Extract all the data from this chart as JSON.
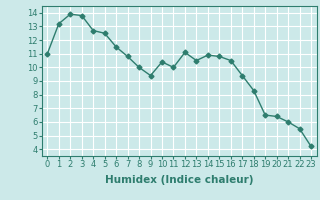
{
  "x": [
    0,
    1,
    2,
    3,
    4,
    5,
    6,
    7,
    8,
    9,
    10,
    11,
    12,
    13,
    14,
    15,
    16,
    17,
    18,
    19,
    20,
    21,
    22,
    23
  ],
  "y": [
    11.0,
    13.2,
    13.9,
    13.8,
    12.7,
    12.5,
    11.5,
    10.8,
    10.0,
    9.4,
    10.4,
    10.0,
    11.1,
    10.5,
    10.9,
    10.8,
    10.5,
    9.4,
    8.3,
    6.5,
    6.4,
    6.0,
    5.5,
    4.2
  ],
  "line_color": "#2e7d6e",
  "bg_color": "#cce9e9",
  "grid_color": "#ffffff",
  "xlabel": "Humidex (Indice chaleur)",
  "xlim": [
    -0.5,
    23.5
  ],
  "ylim": [
    3.5,
    14.5
  ],
  "yticks": [
    4,
    5,
    6,
    7,
    8,
    9,
    10,
    11,
    12,
    13,
    14
  ],
  "xticks": [
    0,
    1,
    2,
    3,
    4,
    5,
    6,
    7,
    8,
    9,
    10,
    11,
    12,
    13,
    14,
    15,
    16,
    17,
    18,
    19,
    20,
    21,
    22,
    23
  ],
  "xtick_labels": [
    "0",
    "1",
    "2",
    "3",
    "4",
    "5",
    "6",
    "7",
    "8",
    "9",
    "10",
    "11",
    "12",
    "13",
    "14",
    "15",
    "16",
    "17",
    "18",
    "19",
    "20",
    "21",
    "22",
    "23"
  ],
  "marker": "D",
  "marker_size": 2.5,
  "line_width": 1.0,
  "tick_fontsize": 6.0,
  "xlabel_fontsize": 7.5
}
